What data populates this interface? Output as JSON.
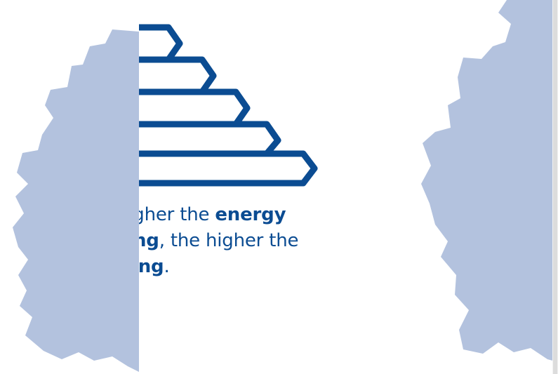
{
  "caption": {
    "line1_regular": "higher the ",
    "line1_bold": "energy",
    "line2_bold": "ng",
    "line2_regular": ", the higher the",
    "line3_bold": "ing",
    "line3_regular": "."
  },
  "colors": {
    "map_fill": "#b3c2de",
    "brand_blue": "#0b4c92",
    "background": "#ffffff"
  },
  "icons": {
    "left_map": "germany-map-silhouette",
    "right_map": "germany-map-silhouette",
    "pyramid": "energy-label-arrows"
  }
}
